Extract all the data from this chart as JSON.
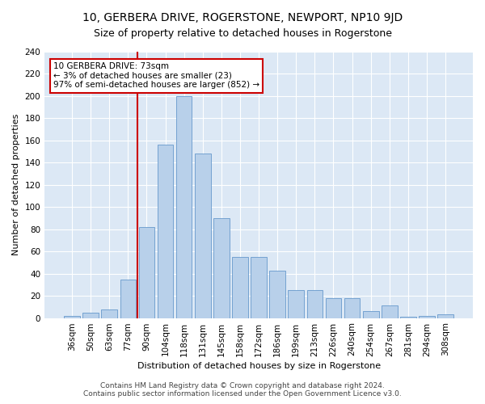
{
  "title": "10, GERBERA DRIVE, ROGERSTONE, NEWPORT, NP10 9JD",
  "subtitle": "Size of property relative to detached houses in Rogerstone",
  "xlabel": "Distribution of detached houses by size in Rogerstone",
  "ylabel": "Number of detached properties",
  "categories": [
    "36sqm",
    "50sqm",
    "63sqm",
    "77sqm",
    "90sqm",
    "104sqm",
    "118sqm",
    "131sqm",
    "145sqm",
    "158sqm",
    "172sqm",
    "186sqm",
    "199sqm",
    "213sqm",
    "226sqm",
    "240sqm",
    "254sqm",
    "267sqm",
    "281sqm",
    "294sqm",
    "308sqm"
  ],
  "values": [
    2,
    5,
    8,
    35,
    82,
    156,
    200,
    148,
    90,
    55,
    55,
    43,
    25,
    25,
    18,
    18,
    6,
    11,
    1,
    2,
    3
  ],
  "bar_color": "#b8d0ea",
  "bar_edge_color": "#6699cc",
  "vline_x": 3.5,
  "vline_color": "#cc0000",
  "annotation_box_text": "10 GERBERA DRIVE: 73sqm\n← 3% of detached houses are smaller (23)\n97% of semi-detached houses are larger (852) →",
  "box_edge_color": "#cc0000",
  "ylim": [
    0,
    240
  ],
  "yticks": [
    0,
    20,
    40,
    60,
    80,
    100,
    120,
    140,
    160,
    180,
    200,
    220,
    240
  ],
  "background_color": "#dce8f5",
  "footer_line1": "Contains HM Land Registry data © Crown copyright and database right 2024.",
  "footer_line2": "Contains public sector information licensed under the Open Government Licence v3.0.",
  "title_fontsize": 10,
  "subtitle_fontsize": 9,
  "axis_label_fontsize": 8,
  "tick_fontsize": 7.5,
  "annotation_fontsize": 7.5,
  "footer_fontsize": 6.5
}
